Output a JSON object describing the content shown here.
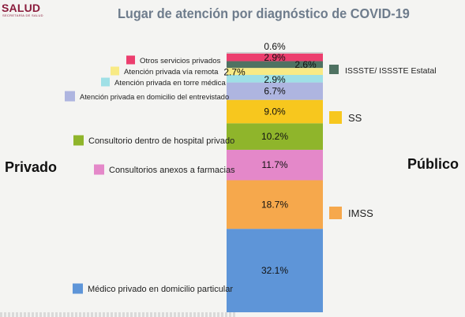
{
  "header": {
    "logo_text": "SALUD",
    "logo_subtext": "SECRETARÍA DE SALUD",
    "title": "Lugar de atención por diagnóstico de COVID-19"
  },
  "side_labels": {
    "left": "Privado",
    "right": "Público"
  },
  "chart_data": {
    "type": "bar",
    "stacked": true,
    "title": "Lugar de atención por diagnóstico de COVID-19",
    "ylim": [
      0,
      100
    ],
    "segments": [
      {
        "label": "Médico privado en domicilio particular",
        "value": 32.1,
        "display": "32.1%",
        "color": "#5e95d8",
        "group": "left"
      },
      {
        "label": "IMSS",
        "value": 18.7,
        "display": "18.7%",
        "color": "#f6a84c",
        "group": "right"
      },
      {
        "label": "Consultorios anexos a farmacias",
        "value": 11.7,
        "display": "11.7%",
        "color": "#e488c9",
        "group": "left"
      },
      {
        "label": "Consultorio dentro de hospital privado",
        "value": 10.2,
        "display": "10.2%",
        "color": "#8fb52b",
        "group": "left"
      },
      {
        "label": "SS",
        "value": 9.0,
        "display": "9.0%",
        "color": "#f7c71e",
        "group": "right"
      },
      {
        "label": "Atención privada en domicilio del entrevistado",
        "value": 6.7,
        "display": "6.7%",
        "color": "#aeb5e0",
        "group": "left"
      },
      {
        "label": "Atención privada en torre médica",
        "value": 2.9,
        "display": "2.9%",
        "color": "#9fe0e6",
        "group": "left"
      },
      {
        "label": "Atención privada vía remota",
        "value": 2.7,
        "display": "2.7%",
        "color": "#f8ea85",
        "group": "left"
      },
      {
        "label": "ISSSTE/ ISSSTE Estatal",
        "value": 2.6,
        "display": "2.6%",
        "color": "#4f7262",
        "group": "right"
      },
      {
        "label": "Otros servicios privados",
        "value": 2.9,
        "display": "2.9%",
        "color": "#ec3e6e",
        "group": "left"
      },
      {
        "label": "",
        "value": 0.6,
        "display": "0.6%",
        "color": "#cfcfcf",
        "group": "none"
      }
    ]
  }
}
